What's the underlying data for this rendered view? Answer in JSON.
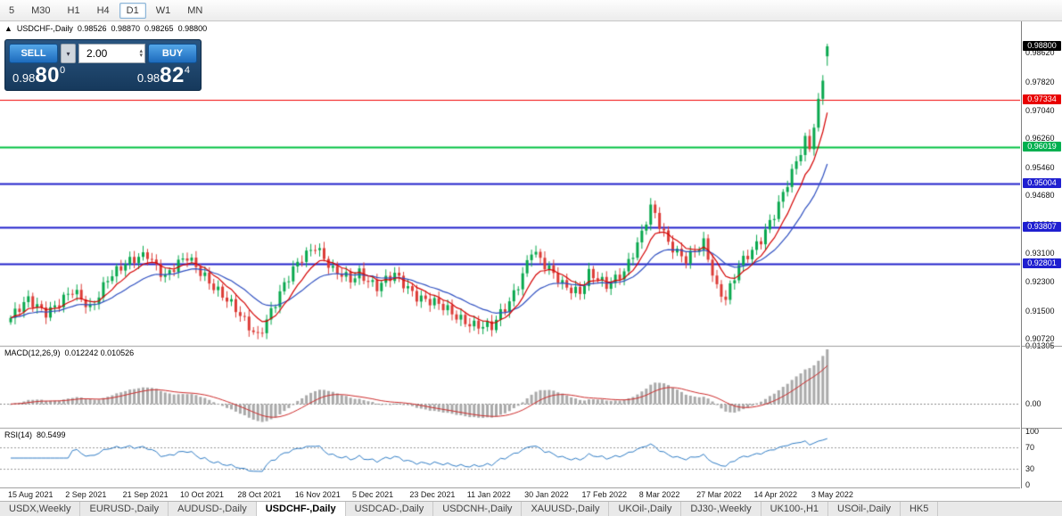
{
  "toolbar": {
    "timeframes": [
      "5",
      "M30",
      "H1",
      "H4",
      "D1",
      "W1",
      "MN"
    ],
    "active": "D1"
  },
  "info_line": {
    "marker": "▲",
    "symbol": "USDCHF-,Daily",
    "open": "0.98526",
    "high": "0.98870",
    "low": "0.98265",
    "close": "0.98800"
  },
  "trade_panel": {
    "sell_label": "SELL",
    "buy_label": "BUY",
    "volume": "2.00",
    "bid": {
      "prefix": "0.98",
      "big": "80",
      "sup": "0"
    },
    "ask": {
      "prefix": "0.98",
      "big": "82",
      "sup": "4"
    }
  },
  "axis": {
    "plain_labels": [
      "0.98620",
      "0.97820",
      "0.97040",
      "0.96260",
      "0.95460",
      "0.94680",
      "0.93880",
      "0.93100",
      "0.92300",
      "0.91500",
      "0.90720"
    ],
    "tags": [
      {
        "label": "0.98800",
        "price": 0.988,
        "bg": "#000000"
      },
      {
        "label": "0.97334",
        "price": 0.97334,
        "bg": "#e80000"
      },
      {
        "label": "0.96019",
        "price": 0.96019,
        "bg": "#00b050"
      },
      {
        "label": "0.95004",
        "price": 0.95004,
        "bg": "#1f1fd0"
      },
      {
        "label": "0.93807",
        "price": 0.93807,
        "bg": "#1f1fd0"
      },
      {
        "label": "0.92801",
        "price": 0.92801,
        "bg": "#1f1fd0"
      }
    ]
  },
  "levels": [
    {
      "price": 0.97334,
      "color": "#f00000",
      "width": 1
    },
    {
      "price": 0.96019,
      "color": "#00c040",
      "width": 2
    },
    {
      "price": 0.95004,
      "color": "#2222cc",
      "width": 2
    },
    {
      "price": 0.93807,
      "color": "#2222cc",
      "width": 2
    },
    {
      "price": 0.92801,
      "color": "#2222cc",
      "width": 2
    }
  ],
  "indicators": {
    "macd": {
      "label": "MACD(12,26,9)",
      "values": "0.012242 0.010526",
      "axis": [
        {
          "label": "0.01305",
          "value": 0.01305
        },
        {
          "label": "0.00",
          "value": 0
        }
      ]
    },
    "rsi": {
      "label": "RSI(14)",
      "value": "80.5499",
      "axis": [
        {
          "label": "100",
          "value": 100
        },
        {
          "label": "70",
          "value": 70
        },
        {
          "label": "30",
          "value": 30
        },
        {
          "label": "0",
          "value": 0
        }
      ],
      "guides": [
        70,
        30
      ]
    }
  },
  "dates": [
    {
      "label": "15 Aug 2021",
      "idx": 1
    },
    {
      "label": "2 Sep 2021",
      "idx": 14
    },
    {
      "label": "21 Sep 2021",
      "idx": 27
    },
    {
      "label": "10 Oct 2021",
      "idx": 40
    },
    {
      "label": "28 Oct 2021",
      "idx": 53
    },
    {
      "label": "16 Nov 2021",
      "idx": 66
    },
    {
      "label": "5 Dec 2021",
      "idx": 79
    },
    {
      "label": "23 Dec 2021",
      "idx": 92
    },
    {
      "label": "11 Jan 2022",
      "idx": 105
    },
    {
      "label": "30 Jan 2022",
      "idx": 118
    },
    {
      "label": "17 Feb 2022",
      "idx": 131
    },
    {
      "label": "8 Mar 2022",
      "idx": 144
    },
    {
      "label": "27 Mar 2022",
      "idx": 157
    },
    {
      "label": "14 Apr 2022",
      "idx": 170
    },
    {
      "label": "3 May 2022",
      "idx": 183
    }
  ],
  "tabs": [
    {
      "label": "USDX,Weekly",
      "active": false
    },
    {
      "label": "EURUSD-,Daily",
      "active": false
    },
    {
      "label": "AUDUSD-,Daily",
      "active": false
    },
    {
      "label": "USDCHF-,Daily",
      "active": true
    },
    {
      "label": "USDCAD-,Daily",
      "active": false
    },
    {
      "label": "USDCNH-,Daily",
      "active": false
    },
    {
      "label": "XAUUSD-,Daily",
      "active": false
    },
    {
      "label": "UKOil-,Daily",
      "active": false
    },
    {
      "label": "DJ30-,Weekly",
      "active": false
    },
    {
      "label": "UK100-,H1",
      "active": false
    },
    {
      "label": "USOil-,Daily",
      "active": false
    },
    {
      "label": "HK5",
      "active": false
    }
  ],
  "chart_data": {
    "type": "candlestick",
    "symbol": "USDCHF",
    "timeframe": "Daily",
    "n_candles": 186,
    "price_range": {
      "min": 0.9053,
      "max": 0.9949
    },
    "close_keypoints": [
      [
        0,
        0.913
      ],
      [
        4,
        0.9175
      ],
      [
        8,
        0.915
      ],
      [
        14,
        0.92
      ],
      [
        18,
        0.9155
      ],
      [
        22,
        0.9245
      ],
      [
        27,
        0.928
      ],
      [
        31,
        0.931
      ],
      [
        35,
        0.9245
      ],
      [
        40,
        0.9295
      ],
      [
        44,
        0.925
      ],
      [
        48,
        0.919
      ],
      [
        53,
        0.912
      ],
      [
        56,
        0.9085
      ],
      [
        60,
        0.917
      ],
      [
        64,
        0.926
      ],
      [
        66,
        0.93
      ],
      [
        69,
        0.9335
      ],
      [
        73,
        0.9255
      ],
      [
        77,
        0.9235
      ],
      [
        79,
        0.926
      ],
      [
        83,
        0.9215
      ],
      [
        87,
        0.9245
      ],
      [
        92,
        0.9195
      ],
      [
        96,
        0.917
      ],
      [
        100,
        0.914
      ],
      [
        105,
        0.9115
      ],
      [
        109,
        0.91
      ],
      [
        113,
        0.9175
      ],
      [
        116,
        0.9255
      ],
      [
        118,
        0.932
      ],
      [
        121,
        0.927
      ],
      [
        125,
        0.9225
      ],
      [
        129,
        0.9205
      ],
      [
        131,
        0.925
      ],
      [
        135,
        0.9215
      ],
      [
        139,
        0.9265
      ],
      [
        143,
        0.936
      ],
      [
        145,
        0.943
      ],
      [
        149,
        0.934
      ],
      [
        153,
        0.9295
      ],
      [
        157,
        0.933
      ],
      [
        160,
        0.921
      ],
      [
        162,
        0.919
      ],
      [
        165,
        0.928
      ],
      [
        168,
        0.931
      ],
      [
        170,
        0.934
      ],
      [
        173,
        0.942
      ],
      [
        176,
        0.951
      ],
      [
        178,
        0.956
      ],
      [
        180,
        0.9615
      ],
      [
        181,
        0.959
      ],
      [
        182,
        0.966
      ],
      [
        183,
        0.972
      ],
      [
        184,
        0.979
      ],
      [
        185,
        0.988
      ]
    ],
    "last_candle": {
      "open": 0.98526,
      "high": 0.9887,
      "low": 0.98265,
      "close": 0.988
    },
    "ma_fast_period": 8,
    "ma_slow_period": 20,
    "colors": {
      "up": "#09a84e",
      "down": "#dc3b36",
      "ma_fast": "#d40000",
      "ma_slow": "#2e4fc0",
      "macd_hist": "#a9a9a9",
      "macd_signal": "#cc2a2a",
      "rsi_line": "#2e7bc4",
      "current_price_bg": "#000000"
    }
  }
}
